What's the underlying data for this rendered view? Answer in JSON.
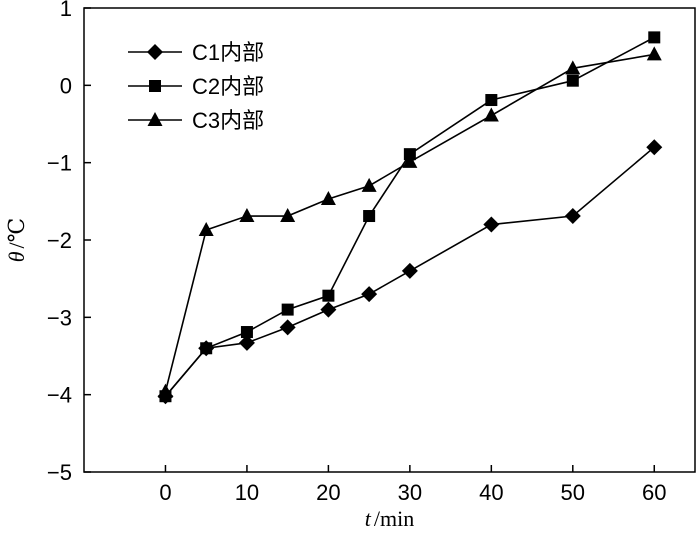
{
  "chart_data": {
    "type": "line",
    "title": "",
    "xlabel_var": "t",
    "xlabel_unit": "/min",
    "ylabel_var": "θ",
    "ylabel_unit": "/℃",
    "xlim": [
      -10,
      65
    ],
    "ylim": [
      -5,
      1
    ],
    "x_ticks": [
      0,
      10,
      20,
      30,
      40,
      50,
      60
    ],
    "y_ticks": [
      -5,
      -4,
      -3,
      -2,
      -1,
      0,
      1
    ],
    "x_tick_labels": [
      "0",
      "10",
      "20",
      "30",
      "40",
      "50",
      "60"
    ],
    "y_tick_labels": [
      "−5",
      "−4",
      "−3",
      "−2",
      "−1",
      "0",
      "1"
    ],
    "legend_position": "top-left",
    "grid": false,
    "series": [
      {
        "name": "C1内部",
        "marker": "diamond",
        "color": "#000000",
        "x": [
          0,
          5,
          10,
          15,
          20,
          25,
          30,
          40,
          50,
          60
        ],
        "y": [
          -4.02,
          -3.4,
          -3.33,
          -3.13,
          -2.9,
          -2.7,
          -2.4,
          -1.8,
          -1.69,
          -0.8
        ]
      },
      {
        "name": "C2内部",
        "marker": "square",
        "color": "#000000",
        "x": [
          0,
          5,
          10,
          15,
          20,
          25,
          30,
          40,
          50,
          60
        ],
        "y": [
          -4.02,
          -3.4,
          -3.19,
          -2.9,
          -2.72,
          -1.69,
          -0.89,
          -0.19,
          0.06,
          0.62
        ]
      },
      {
        "name": "C3内部",
        "marker": "triangle",
        "color": "#000000",
        "x": [
          0,
          5,
          10,
          15,
          20,
          25,
          30,
          40,
          50,
          60
        ],
        "y": [
          -3.96,
          -1.87,
          -1.69,
          -1.69,
          -1.47,
          -1.3,
          -0.99,
          -0.39,
          0.22,
          0.4
        ]
      }
    ]
  }
}
